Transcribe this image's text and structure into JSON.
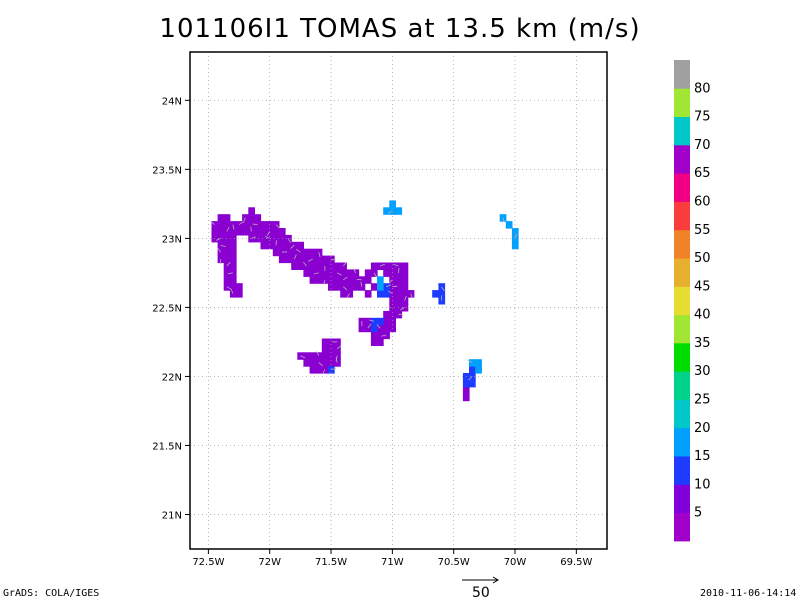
{
  "title": "101106I1 TOMAS at 13.5 km (m/s)",
  "map": {
    "lon_range": [
      -72.65,
      -69.25
    ],
    "lat_range": [
      20.75,
      24.35
    ],
    "lon_ticks": [
      -72.5,
      -72,
      -71.5,
      -71,
      -70.5,
      -70,
      -69.5
    ],
    "lon_tick_labels": [
      "72.5W",
      "72W",
      "71.5W",
      "71W",
      "70.5W",
      "70W",
      "69.5W"
    ],
    "lat_ticks": [
      21,
      21.5,
      22,
      22.5,
      23,
      23.5,
      24
    ],
    "lat_tick_labels": [
      "21N",
      "21.5N",
      "22N",
      "22.5N",
      "23N",
      "23.5N",
      "24N"
    ],
    "grid": "dotted",
    "cell_deg": 0.05,
    "regions": [
      {
        "level": 5,
        "color": "#8a00d0",
        "cells": [
          [
            -72.4,
            23.15
          ],
          [
            -72.35,
            23.15
          ],
          [
            -72.45,
            23.1
          ],
          [
            -72.4,
            23.1
          ],
          [
            -72.35,
            23.1
          ],
          [
            -72.3,
            23.1
          ],
          [
            -72.45,
            23.05
          ],
          [
            -72.4,
            23.05
          ],
          [
            -72.35,
            23.05
          ],
          [
            -72.3,
            23.05
          ],
          [
            -72.45,
            23.0
          ],
          [
            -72.4,
            23.0
          ],
          [
            -72.35,
            23.0
          ],
          [
            -72.3,
            23.0
          ],
          [
            -72.4,
            22.95
          ],
          [
            -72.35,
            22.95
          ],
          [
            -72.3,
            22.95
          ],
          [
            -72.4,
            22.9
          ],
          [
            -72.35,
            22.9
          ],
          [
            -72.3,
            22.9
          ],
          [
            -72.4,
            22.85
          ],
          [
            -72.35,
            22.85
          ],
          [
            -72.3,
            22.85
          ],
          [
            -72.35,
            22.8
          ],
          [
            -72.3,
            22.8
          ],
          [
            -72.35,
            22.75
          ],
          [
            -72.3,
            22.75
          ],
          [
            -72.35,
            22.7
          ],
          [
            -72.3,
            22.7
          ],
          [
            -72.35,
            22.65
          ],
          [
            -72.3,
            22.65
          ],
          [
            -72.25,
            22.65
          ],
          [
            -72.3,
            22.6
          ],
          [
            -72.25,
            22.6
          ],
          [
            -72.15,
            23.2
          ],
          [
            -72.2,
            23.15
          ],
          [
            -72.15,
            23.15
          ],
          [
            -72.1,
            23.15
          ],
          [
            -72.25,
            23.1
          ],
          [
            -72.2,
            23.1
          ],
          [
            -72.15,
            23.1
          ],
          [
            -72.1,
            23.1
          ],
          [
            -72.05,
            23.1
          ],
          [
            -72.0,
            23.1
          ],
          [
            -71.95,
            23.1
          ],
          [
            -72.25,
            23.05
          ],
          [
            -72.2,
            23.05
          ],
          [
            -72.15,
            23.05
          ],
          [
            -72.1,
            23.05
          ],
          [
            -72.05,
            23.05
          ],
          [
            -72.0,
            23.05
          ],
          [
            -71.95,
            23.05
          ],
          [
            -71.9,
            23.05
          ],
          [
            -72.15,
            23.0
          ],
          [
            -72.1,
            23.0
          ],
          [
            -72.05,
            23.0
          ],
          [
            -72.0,
            23.0
          ],
          [
            -71.95,
            23.0
          ],
          [
            -71.9,
            23.0
          ],
          [
            -71.85,
            23.0
          ],
          [
            -72.05,
            22.95
          ],
          [
            -72.0,
            22.95
          ],
          [
            -71.95,
            22.95
          ],
          [
            -71.9,
            22.95
          ],
          [
            -71.85,
            22.95
          ],
          [
            -71.8,
            22.95
          ],
          [
            -71.75,
            22.95
          ],
          [
            -71.95,
            22.9
          ],
          [
            -71.9,
            22.9
          ],
          [
            -71.85,
            22.9
          ],
          [
            -71.8,
            22.9
          ],
          [
            -71.75,
            22.9
          ],
          [
            -71.7,
            22.9
          ],
          [
            -71.65,
            22.9
          ],
          [
            -71.6,
            22.9
          ],
          [
            -71.9,
            22.85
          ],
          [
            -71.85,
            22.85
          ],
          [
            -71.8,
            22.85
          ],
          [
            -71.75,
            22.85
          ],
          [
            -71.7,
            22.85
          ],
          [
            -71.65,
            22.85
          ],
          [
            -71.6,
            22.85
          ],
          [
            -71.55,
            22.85
          ],
          [
            -71.5,
            22.85
          ],
          [
            -71.8,
            22.8
          ],
          [
            -71.75,
            22.8
          ],
          [
            -71.7,
            22.8
          ],
          [
            -71.65,
            22.8
          ],
          [
            -71.6,
            22.8
          ],
          [
            -71.55,
            22.8
          ],
          [
            -71.5,
            22.8
          ],
          [
            -71.45,
            22.8
          ],
          [
            -71.4,
            22.8
          ],
          [
            -71.7,
            22.75
          ],
          [
            -71.65,
            22.75
          ],
          [
            -71.6,
            22.75
          ],
          [
            -71.55,
            22.75
          ],
          [
            -71.5,
            22.75
          ],
          [
            -71.45,
            22.75
          ],
          [
            -71.4,
            22.75
          ],
          [
            -71.35,
            22.75
          ],
          [
            -71.3,
            22.75
          ],
          [
            -71.65,
            22.7
          ],
          [
            -71.6,
            22.7
          ],
          [
            -71.55,
            22.7
          ],
          [
            -71.5,
            22.7
          ],
          [
            -71.45,
            22.7
          ],
          [
            -71.4,
            22.7
          ],
          [
            -71.35,
            22.7
          ],
          [
            -71.3,
            22.7
          ],
          [
            -71.25,
            22.7
          ],
          [
            -71.5,
            22.65
          ],
          [
            -71.45,
            22.65
          ],
          [
            -71.4,
            22.65
          ],
          [
            -71.35,
            22.65
          ],
          [
            -71.3,
            22.65
          ],
          [
            -71.25,
            22.65
          ],
          [
            -71.15,
            22.65
          ],
          [
            -71.4,
            22.6
          ],
          [
            -71.35,
            22.6
          ],
          [
            -71.2,
            22.6
          ],
          [
            -71.15,
            22.8
          ],
          [
            -71.1,
            22.8
          ],
          [
            -71.05,
            22.8
          ],
          [
            -71.0,
            22.8
          ],
          [
            -70.95,
            22.8
          ],
          [
            -70.9,
            22.8
          ],
          [
            -71.2,
            22.75
          ],
          [
            -71.15,
            22.75
          ],
          [
            -71.05,
            22.75
          ],
          [
            -71.0,
            22.75
          ],
          [
            -70.95,
            22.75
          ],
          [
            -70.9,
            22.75
          ],
          [
            -71.2,
            22.7
          ],
          [
            -71.0,
            22.7
          ],
          [
            -70.95,
            22.7
          ],
          [
            -70.9,
            22.7
          ],
          [
            -71.0,
            22.65
          ],
          [
            -70.95,
            22.65
          ],
          [
            -70.9,
            22.65
          ],
          [
            -71.0,
            22.6
          ],
          [
            -70.95,
            22.6
          ],
          [
            -70.9,
            22.6
          ],
          [
            -70.85,
            22.6
          ],
          [
            -71.0,
            22.55
          ],
          [
            -70.95,
            22.55
          ],
          [
            -70.9,
            22.55
          ],
          [
            -71.0,
            22.5
          ],
          [
            -70.95,
            22.5
          ],
          [
            -70.9,
            22.5
          ],
          [
            -71.05,
            22.45
          ],
          [
            -71.0,
            22.45
          ],
          [
            -70.95,
            22.45
          ],
          [
            -71.05,
            22.4
          ],
          [
            -71.0,
            22.4
          ],
          [
            -71.1,
            22.35
          ],
          [
            -71.05,
            22.35
          ],
          [
            -71.0,
            22.35
          ],
          [
            -71.25,
            22.4
          ],
          [
            -71.2,
            22.4
          ],
          [
            -71.25,
            22.35
          ],
          [
            -71.2,
            22.35
          ],
          [
            -71.15,
            22.3
          ],
          [
            -71.1,
            22.3
          ],
          [
            -71.05,
            22.3
          ],
          [
            -71.15,
            22.25
          ],
          [
            -71.1,
            22.25
          ],
          [
            -71.75,
            22.15
          ],
          [
            -71.7,
            22.15
          ],
          [
            -71.65,
            22.15
          ],
          [
            -71.6,
            22.15
          ],
          [
            -71.55,
            22.15
          ],
          [
            -71.5,
            22.15
          ],
          [
            -71.45,
            22.15
          ],
          [
            -71.55,
            22.2
          ],
          [
            -71.5,
            22.2
          ],
          [
            -71.45,
            22.2
          ],
          [
            -71.55,
            22.25
          ],
          [
            -71.5,
            22.25
          ],
          [
            -71.45,
            22.25
          ],
          [
            -71.7,
            22.1
          ],
          [
            -71.65,
            22.1
          ],
          [
            -71.6,
            22.1
          ],
          [
            -71.55,
            22.1
          ],
          [
            -71.5,
            22.1
          ],
          [
            -71.45,
            22.1
          ],
          [
            -71.65,
            22.05
          ],
          [
            -71.6,
            22.05
          ],
          [
            -71.55,
            22.05
          ],
          [
            -70.4,
            21.9
          ],
          [
            -70.4,
            21.85
          ]
        ]
      },
      {
        "level": 10,
        "color": "#1e3cff",
        "cells": [
          [
            -71.05,
            22.65
          ],
          [
            -71.05,
            22.6
          ],
          [
            -71.1,
            22.6
          ],
          [
            -71.15,
            22.4
          ],
          [
            -71.1,
            22.4
          ],
          [
            -71.15,
            22.35
          ],
          [
            -70.6,
            22.65
          ],
          [
            -70.6,
            22.6
          ],
          [
            -70.65,
            22.6
          ],
          [
            -70.6,
            22.55
          ],
          [
            -70.35,
            22.05
          ],
          [
            -70.4,
            22.0
          ],
          [
            -70.35,
            22.0
          ],
          [
            -70.4,
            21.95
          ],
          [
            -70.35,
            21.95
          ],
          [
            -71.5,
            22.05
          ]
        ]
      },
      {
        "level": 15,
        "color": "#00a0ff",
        "cells": [
          [
            -71.1,
            22.7
          ],
          [
            -71.1,
            22.65
          ],
          [
            -70.35,
            22.1
          ],
          [
            -70.3,
            22.1
          ],
          [
            -70.3,
            22.05
          ],
          [
            -70.1,
            23.15
          ],
          [
            -70.05,
            23.1
          ],
          [
            -70.0,
            23.05
          ],
          [
            -70.0,
            23.0
          ],
          [
            -70.0,
            22.95
          ],
          [
            -71.05,
            23.2
          ],
          [
            -71.0,
            23.2
          ],
          [
            -70.95,
            23.2
          ],
          [
            -71.0,
            23.25
          ]
        ]
      }
    ],
    "vector_scale": 50
  },
  "colorbar": {
    "colors": [
      "#a000c8",
      "#8200dc",
      "#1e3cff",
      "#00a0ff",
      "#00c8c8",
      "#00d28c",
      "#00dc00",
      "#a0e632",
      "#e6dc32",
      "#e6af2d",
      "#f08228",
      "#fa3c3c",
      "#f00082",
      "#a000c8",
      "#00c8c8",
      "#a0e632",
      "#a0a0a0"
    ],
    "labels": [
      "5",
      "10",
      "15",
      "20",
      "25",
      "30",
      "35",
      "40",
      "45",
      "50",
      "55",
      "60",
      "65",
      "70",
      "75",
      "80"
    ]
  },
  "footer": {
    "left": "GrADS: COLA/IGES",
    "right": "2010-11-06-14:14",
    "reference": "50"
  }
}
